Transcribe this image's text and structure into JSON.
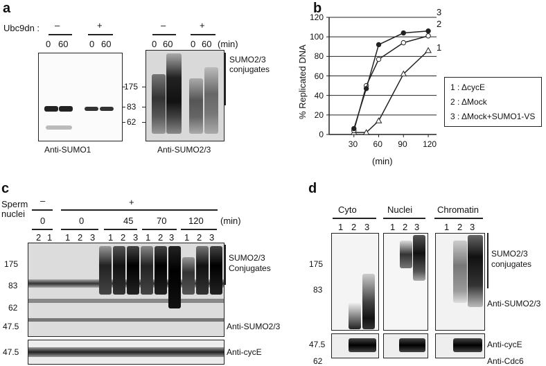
{
  "panel_a": {
    "letter": "a",
    "ubc9dn_label": "Ubc9dn :",
    "minus": "–",
    "plus": "+",
    "time_labels": [
      "0",
      "60",
      "0",
      "60"
    ],
    "min_label": "(min)",
    "markers": [
      "175",
      "83",
      "62"
    ],
    "sumo23_conjugates": [
      "SUMO2/3",
      "conjugates"
    ],
    "blot1_label": "Anti-SUMO1",
    "blot2_label": "Anti-SUMO2/3"
  },
  "panel_b": {
    "letter": "b",
    "legend": [
      "1 : ΔcycE",
      "2 : ΔMock",
      "3 : ΔMock+SUMO1-VS"
    ],
    "series_tags": [
      "1",
      "2",
      "3"
    ]
  },
  "chart_data": {
    "type": "line",
    "xlabel": "(min)",
    "ylabel": "% Replicated DNA",
    "x_ticks": [
      30,
      60,
      90,
      120
    ],
    "y_ticks": [
      0,
      20,
      40,
      60,
      80,
      100,
      120
    ],
    "xlim": [
      0,
      130
    ],
    "ylim": [
      0,
      120
    ],
    "grid": true,
    "legend_position": "right",
    "series": [
      {
        "name": "1",
        "marker": "open-triangle",
        "x": [
          30,
          45,
          60,
          90,
          120
        ],
        "y": [
          2,
          2,
          14,
          62,
          86
        ]
      },
      {
        "name": "2",
        "marker": "open-circle",
        "x": [
          30,
          45,
          60,
          90,
          120
        ],
        "y": [
          4,
          50,
          77,
          94,
          101
        ]
      },
      {
        "name": "3",
        "marker": "filled-circle",
        "x": [
          30,
          45,
          60,
          90,
          120
        ],
        "y": [
          6,
          47,
          92,
          104,
          106
        ]
      }
    ]
  },
  "panel_c": {
    "letter": "c",
    "sperm_label": [
      "Sperm",
      "nuclei"
    ],
    "minus": "–",
    "plus": "+",
    "time_labels": [
      "0",
      "0",
      "45",
      "70",
      "120"
    ],
    "min_label": "(min)",
    "lane_labels": [
      "2",
      "1",
      "1",
      "2",
      "3",
      "1",
      "2",
      "3",
      "1",
      "2",
      "3",
      "1",
      "2",
      "3"
    ],
    "markers": [
      "175",
      "83",
      "62",
      "47.5"
    ],
    "marker_bottom": "47.5",
    "sumo23_conjugates": [
      "SUMO2/3",
      "Conjugates"
    ],
    "anti_sumo": "Anti-SUMO2/3",
    "anti_cyce": "Anti-cycE"
  },
  "panel_d": {
    "letter": "d",
    "fractions": [
      "Cyto",
      "Nuclei",
      "Chromatin"
    ],
    "lane_labels": [
      "1",
      "2",
      "3"
    ],
    "markers": [
      "175",
      "83"
    ],
    "marker_cyce": "47.5",
    "marker_cdc6": "62",
    "sumo23_conjugates": [
      "SUMO2/3",
      "conjugates"
    ],
    "anti_sumo": "Anti-SUMO2/3",
    "anti_cyce": "Anti-cycE",
    "anti_cdc6": "Anti-Cdc6"
  }
}
